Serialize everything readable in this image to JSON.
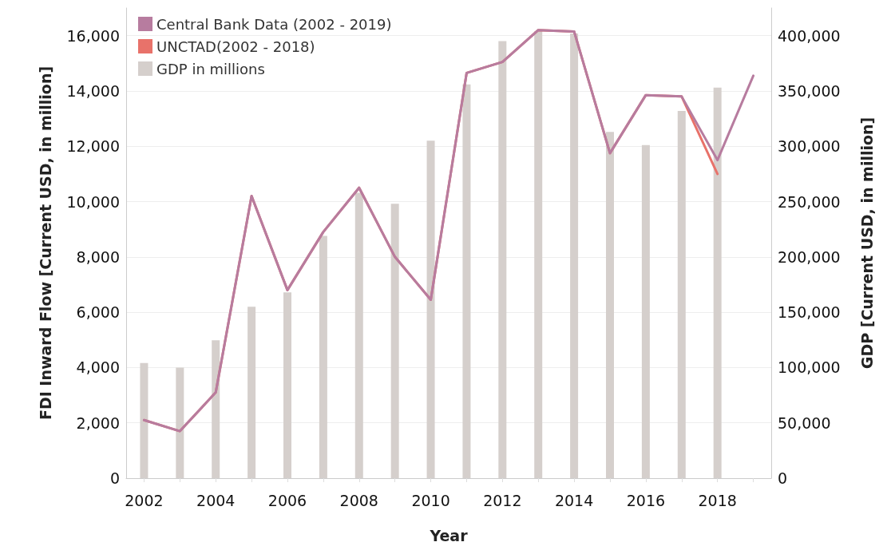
{
  "chart_data": {
    "type": "line",
    "xlabel": "Year",
    "ylabel": "FDI Inward Flow [Current USD, in million]",
    "y2label": "GDP [Current USD, in million]",
    "categories": [
      "2002",
      null,
      "2004",
      null,
      "2006",
      null,
      "2008",
      null,
      "2010",
      null,
      "2012",
      null,
      "2014",
      null,
      "2016",
      null,
      "2018",
      null
    ],
    "series": [
      {
        "name": "GDP in millions",
        "type": "bar",
        "axis": "y2",
        "color": "#d5cfcc",
        "values": [
          104000,
          100000,
          124600,
          155000,
          168000,
          219000,
          258000,
          248000,
          305000,
          356000,
          395000,
          404000,
          402000,
          313000,
          301000,
          332000,
          353000,
          null
        ]
      },
      {
        "name": "UNCTAD(2002 - 2018)",
        "color": "#e8726a",
        "values": [
          2100,
          1700,
          3100,
          10200,
          6800,
          8900,
          10500,
          8000,
          6450,
          14650,
          15050,
          16200,
          16150,
          11750,
          13850,
          13800,
          11000,
          null
        ]
      },
      {
        "name": "Central Bank Data (2002 - 2019)",
        "color": "#b77c9f",
        "values": [
          2100,
          1700,
          3100,
          10200,
          6800,
          8900,
          10500,
          8000,
          6450,
          14650,
          15050,
          16200,
          16150,
          11750,
          13850,
          13800,
          11500,
          14550
        ]
      }
    ],
    "ylim": [
      0,
      17000
    ],
    "yticks": [
      0,
      {
        "value": 2000,
        "label": "2,000"
      },
      {
        "value": 4000,
        "label": "4,000"
      },
      {
        "value": 6000,
        "label": "6,000"
      },
      {
        "value": 8000,
        "label": "8,000"
      },
      {
        "value": 10000,
        "label": "10,000"
      },
      {
        "value": 12000,
        "label": "12,000"
      },
      {
        "value": 14000,
        "label": "14,000"
      },
      {
        "value": 16000,
        "label": "16,000"
      }
    ],
    "y2lim": [
      0,
      425000
    ],
    "y2ticks": [
      0,
      {
        "value": 50000,
        "label": "50,000"
      },
      {
        "value": 100000,
        "label": "100,000"
      },
      {
        "value": 150000,
        "label": "150,000"
      },
      {
        "value": 200000,
        "label": "200,000"
      },
      {
        "value": 250000,
        "label": "250,000"
      },
      {
        "value": 300000,
        "label": "300,000"
      },
      {
        "value": 350000,
        "label": "350,000"
      },
      {
        "value": 400000,
        "label": "400,000"
      }
    ],
    "grid": "y",
    "legend": "top left",
    "marker": "none",
    "line_style": "solid"
  }
}
